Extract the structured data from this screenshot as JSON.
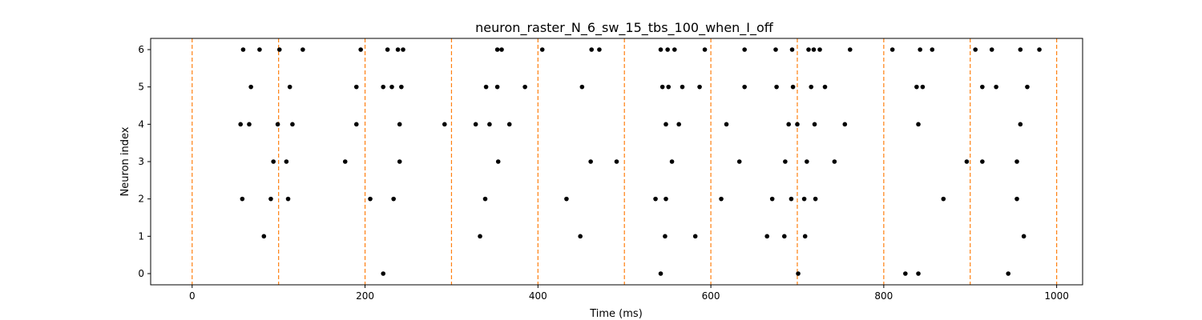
{
  "chart_data": {
    "type": "scatter",
    "title": "neuron_raster_N_6_sw_15_tbs_100_when_I_off",
    "xlabel": "Time (ms)",
    "ylabel": "Neuron index",
    "xlim": [
      -48,
      1030
    ],
    "ylim": [
      -0.3,
      6.3
    ],
    "xticks": [
      0,
      200,
      400,
      600,
      800,
      1000
    ],
    "yticks": [
      0,
      1,
      2,
      3,
      4,
      5,
      6
    ],
    "grid": false,
    "legend": "none",
    "marker_color": "#000000",
    "vline_color": "#ff7f0e",
    "vlines": [
      0,
      100,
      200,
      300,
      400,
      500,
      600,
      700,
      800,
      900,
      1000
    ],
    "series": [
      {
        "neuron": 6,
        "spikes": [
          59,
          78,
          101,
          128,
          195,
          226,
          238,
          244,
          353,
          358,
          405,
          462,
          471,
          542,
          550,
          558,
          593,
          639,
          675,
          694,
          713,
          719,
          726,
          761,
          810,
          842,
          856,
          906,
          925,
          958,
          980
        ]
      },
      {
        "neuron": 5,
        "spikes": [
          68,
          113,
          190,
          221,
          231,
          242,
          340,
          353,
          385,
          451,
          544,
          551,
          567,
          587,
          639,
          676,
          695,
          716,
          732,
          838,
          845,
          914,
          930,
          966
        ]
      },
      {
        "neuron": 4,
        "spikes": [
          56,
          66,
          99,
          116,
          190,
          240,
          292,
          328,
          344,
          367,
          548,
          563,
          618,
          690,
          700,
          720,
          755,
          840,
          958
        ]
      },
      {
        "neuron": 3,
        "spikes": [
          94,
          109,
          177,
          240,
          354,
          461,
          491,
          555,
          633,
          686,
          711,
          743,
          896,
          914,
          954
        ]
      },
      {
        "neuron": 2,
        "spikes": [
          58,
          91,
          111,
          206,
          233,
          339,
          433,
          536,
          548,
          612,
          671,
          693,
          708,
          721,
          869,
          954
        ]
      },
      {
        "neuron": 1,
        "spikes": [
          83,
          333,
          449,
          547,
          582,
          665,
          685,
          709,
          962
        ]
      },
      {
        "neuron": 0,
        "spikes": [
          221,
          542,
          701,
          825,
          840,
          944
        ]
      }
    ]
  }
}
